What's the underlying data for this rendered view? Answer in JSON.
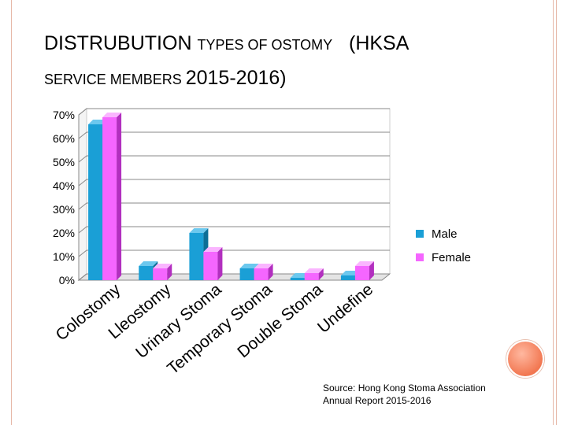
{
  "title": {
    "line1_big": "DISTRUBUTION ",
    "line1_small": "TYPES OF OSTOMY",
    "line1_paren": "   (HKSA",
    "line2_small": "SERVICE MEMBERS ",
    "line2_big": "2015-2016)"
  },
  "source": {
    "line1": "Source:  Hong Kong Stoma Association",
    "line2": "Annual Report 2015-2016"
  },
  "colors": {
    "male": "#1a9fd6",
    "male_dark": "#0d6e96",
    "male_top": "#6cc8ee",
    "female": "#f566ff",
    "female_dark": "#b22fbf",
    "female_top": "#fab5ff"
  },
  "chart_data": {
    "type": "bar",
    "title": "DISTRUBUTION TYPES OF OSTOMY (HKSA SERVICE MEMBERS 2015-2016)",
    "categories": [
      "Colostomy",
      "Lleostomy",
      "Urinary Stoma",
      "Temporary Stoma",
      "Double Stoma",
      "Undefine"
    ],
    "series": [
      {
        "name": "Male",
        "values": [
          66,
          6,
          20,
          5,
          1,
          2
        ]
      },
      {
        "name": "Female",
        "values": [
          69,
          5,
          12,
          5,
          3,
          6
        ]
      }
    ],
    "ylim": [
      0,
      70
    ],
    "yticks": [
      "0%",
      "10%",
      "20%",
      "30%",
      "40%",
      "50%",
      "60%",
      "70%"
    ],
    "xlabel": "",
    "ylabel": "",
    "legend": [
      "Male",
      "Female"
    ],
    "legend_position": "right"
  }
}
